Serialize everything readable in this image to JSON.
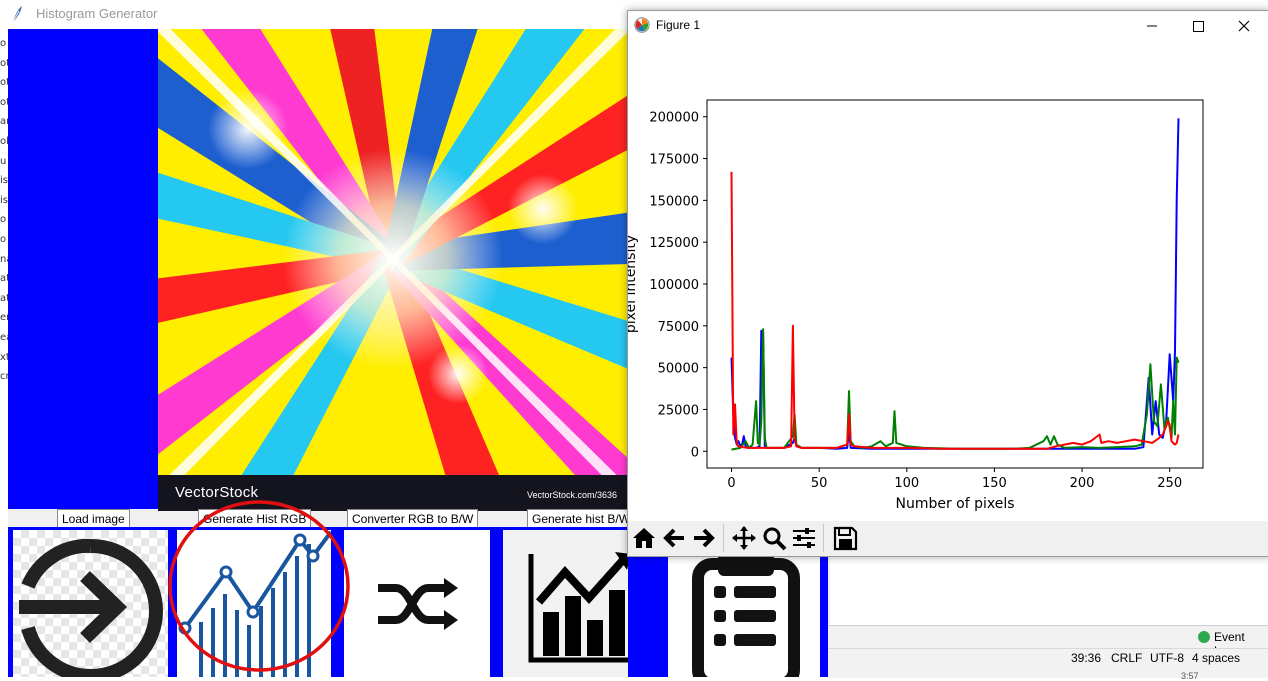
{
  "background_window": {
    "title": "Histogram Generator",
    "image_watermark": "VectorStock",
    "image_url_text": "VectorStock.com/3636",
    "buttons": [
      {
        "label": "Load image",
        "icon": "login-arrow-icon"
      },
      {
        "label": "Generate Hist RGB",
        "icon": "line-chart-icon"
      },
      {
        "label": "Converter RGB to B/W",
        "icon": "shuffle-icon"
      },
      {
        "label": "Generate hist B/W",
        "icon": "trend-chart-icon"
      },
      {
        "label": "",
        "icon": "clipboard-list-icon"
      }
    ],
    "left_strip_chars": [
      "o",
      "ot",
      "ot",
      "ot",
      "ar",
      "ol",
      "u",
      "is",
      "is",
      "o",
      "o",
      "na",
      "at",
      "at",
      "en",
      "ea",
      "xt",
      "cr"
    ],
    "accent_color": "#0000ff"
  },
  "ide_status": {
    "event_log": "Event Log",
    "position": "39:36",
    "line_ending": "CRLF",
    "encoding": "UTF-8",
    "indent": "4 spaces",
    "clock_fragment": "3:57"
  },
  "figure_window": {
    "title": "Figure 1",
    "toolbar": [
      "home-icon",
      "back-arrow-icon",
      "forward-arrow-icon",
      "pan-icon",
      "zoom-icon",
      "configure-subplots-icon",
      "save-icon"
    ]
  },
  "chart_data": {
    "type": "line",
    "title": "",
    "xlabel": "Number of pixels",
    "ylabel": "pixel intensity",
    "xlim": [
      -14,
      269
    ],
    "ylim": [
      -10000,
      210000
    ],
    "xticks": [
      0,
      50,
      100,
      150,
      200,
      250
    ],
    "yticks": [
      0,
      25000,
      50000,
      75000,
      100000,
      125000,
      150000,
      175000,
      200000
    ],
    "grid": false,
    "legend": "none",
    "series": [
      {
        "color": "#0000ff",
        "points": [
          [
            0,
            56000
          ],
          [
            1,
            22000
          ],
          [
            2,
            8000
          ],
          [
            3,
            4000
          ],
          [
            4,
            6000
          ],
          [
            5,
            3000
          ],
          [
            6,
            4000
          ],
          [
            7,
            9000
          ],
          [
            8,
            3000
          ],
          [
            9,
            2000
          ],
          [
            10,
            2500
          ],
          [
            12,
            2000
          ],
          [
            14,
            2000
          ],
          [
            16,
            3000
          ],
          [
            17,
            72000
          ],
          [
            18,
            71000
          ],
          [
            19,
            3000
          ],
          [
            20,
            2000
          ],
          [
            25,
            2000
          ],
          [
            30,
            2000
          ],
          [
            35,
            5000
          ],
          [
            36,
            8000
          ],
          [
            37,
            3000
          ],
          [
            40,
            2000
          ],
          [
            50,
            2000
          ],
          [
            60,
            1500
          ],
          [
            66,
            2000
          ],
          [
            67,
            12000
          ],
          [
            68,
            2000
          ],
          [
            80,
            1500
          ],
          [
            100,
            1500
          ],
          [
            120,
            1500
          ],
          [
            140,
            1500
          ],
          [
            160,
            1500
          ],
          [
            180,
            1500
          ],
          [
            200,
            1500
          ],
          [
            220,
            1500
          ],
          [
            230,
            1500
          ],
          [
            235,
            2500
          ],
          [
            238,
            44000
          ],
          [
            240,
            10000
          ],
          [
            242,
            30000
          ],
          [
            244,
            10000
          ],
          [
            246,
            8000
          ],
          [
            248,
            18000
          ],
          [
            250,
            58000
          ],
          [
            252,
            30000
          ],
          [
            253,
            60000
          ],
          [
            254,
            150000
          ],
          [
            255,
            199000
          ]
        ]
      },
      {
        "color": "#008000",
        "points": [
          [
            0,
            1000
          ],
          [
            5,
            2000
          ],
          [
            8,
            6000
          ],
          [
            10,
            2000
          ],
          [
            12,
            4000
          ],
          [
            14,
            30000
          ],
          [
            15,
            5000
          ],
          [
            16,
            4000
          ],
          [
            17,
            18000
          ],
          [
            18,
            73000
          ],
          [
            19,
            8000
          ],
          [
            20,
            2000
          ],
          [
            30,
            2000
          ],
          [
            35,
            9000
          ],
          [
            36,
            22000
          ],
          [
            37,
            4000
          ],
          [
            40,
            2000
          ],
          [
            60,
            2000
          ],
          [
            66,
            4000
          ],
          [
            67,
            36000
          ],
          [
            68,
            6000
          ],
          [
            70,
            3000
          ],
          [
            75,
            2000
          ],
          [
            80,
            3000
          ],
          [
            85,
            6000
          ],
          [
            88,
            3000
          ],
          [
            92,
            5000
          ],
          [
            93,
            24000
          ],
          [
            94,
            5000
          ],
          [
            100,
            3000
          ],
          [
            110,
            2000
          ],
          [
            130,
            1500
          ],
          [
            150,
            1500
          ],
          [
            160,
            1500
          ],
          [
            170,
            2000
          ],
          [
            178,
            6000
          ],
          [
            180,
            9000
          ],
          [
            182,
            4000
          ],
          [
            184,
            9000
          ],
          [
            186,
            4000
          ],
          [
            190,
            2000
          ],
          [
            200,
            2500
          ],
          [
            210,
            2000
          ],
          [
            220,
            2500
          ],
          [
            230,
            3000
          ],
          [
            234,
            4000
          ],
          [
            237,
            22000
          ],
          [
            239,
            52000
          ],
          [
            241,
            18000
          ],
          [
            243,
            15000
          ],
          [
            245,
            40000
          ],
          [
            247,
            14000
          ],
          [
            249,
            20000
          ],
          [
            251,
            8000
          ],
          [
            252,
            30000
          ],
          [
            253,
            10000
          ],
          [
            254,
            56000
          ],
          [
            255,
            53000
          ]
        ]
      },
      {
        "color": "#ff0000",
        "points": [
          [
            0,
            167000
          ],
          [
            1,
            10000
          ],
          [
            2,
            28000
          ],
          [
            3,
            4000
          ],
          [
            4,
            3000
          ],
          [
            6,
            2500
          ],
          [
            10,
            2000
          ],
          [
            20,
            2000
          ],
          [
            30,
            2000
          ],
          [
            34,
            3000
          ],
          [
            35,
            75000
          ],
          [
            36,
            8000
          ],
          [
            37,
            3000
          ],
          [
            40,
            2000
          ],
          [
            60,
            2000
          ],
          [
            66,
            4000
          ],
          [
            67,
            22000
          ],
          [
            68,
            4000
          ],
          [
            70,
            3000
          ],
          [
            80,
            2000
          ],
          [
            100,
            2000
          ],
          [
            120,
            1500
          ],
          [
            140,
            1500
          ],
          [
            160,
            1500
          ],
          [
            180,
            1500
          ],
          [
            185,
            3000
          ],
          [
            190,
            4000
          ],
          [
            195,
            5000
          ],
          [
            200,
            4000
          ],
          [
            205,
            6000
          ],
          [
            210,
            10000
          ],
          [
            211,
            5000
          ],
          [
            215,
            6000
          ],
          [
            220,
            5000
          ],
          [
            225,
            6000
          ],
          [
            230,
            7000
          ],
          [
            235,
            6000
          ],
          [
            240,
            5000
          ],
          [
            244,
            8000
          ],
          [
            246,
            10000
          ],
          [
            248,
            15000
          ],
          [
            249,
            18000
          ],
          [
            250,
            16000
          ],
          [
            251,
            6000
          ],
          [
            252,
            5000
          ],
          [
            253,
            4000
          ],
          [
            254,
            5000
          ],
          [
            255,
            10000
          ]
        ]
      }
    ]
  }
}
